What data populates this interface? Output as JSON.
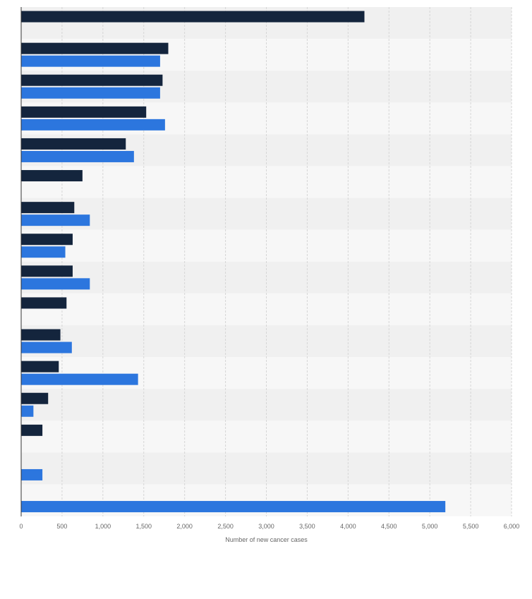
{
  "chart_data": {
    "type": "bar",
    "orientation": "horizontal",
    "title": "",
    "xlabel": "Number of new cancer cases",
    "ylabel": "",
    "xlim": [
      0,
      6000
    ],
    "x_ticks": [
      0,
      500,
      1000,
      1500,
      2000,
      2500,
      3000,
      3500,
      4000,
      4500,
      5000,
      5500,
      6000
    ],
    "x_tick_labels": [
      "0",
      "500",
      "1,000",
      "1,500",
      "2,000",
      "2,500",
      "3,000",
      "3,500",
      "4,000",
      "4,500",
      "5,000",
      "5,500",
      "6,000"
    ],
    "grid": true,
    "legend": "none",
    "categories": [
      "",
      "",
      "",
      "",
      "",
      "",
      "",
      "",
      "",
      "",
      "",
      "",
      "",
      "",
      "",
      ""
    ],
    "series": [
      {
        "color": "#14253d",
        "values": [
          4200,
          1800,
          1730,
          1530,
          1280,
          750,
          650,
          630,
          630,
          555,
          480,
          460,
          330,
          260,
          null,
          null
        ]
      },
      {
        "color": "#2c76de",
        "values": [
          null,
          1700,
          1700,
          1760,
          1380,
          null,
          840,
          540,
          840,
          null,
          620,
          1430,
          150,
          null,
          260,
          5190
        ]
      }
    ],
    "colors": {
      "band_light": "#f7f7f7",
      "band_dark": "#f0f0f0",
      "grid": "#d6d6d6",
      "axis": "#333333"
    }
  }
}
